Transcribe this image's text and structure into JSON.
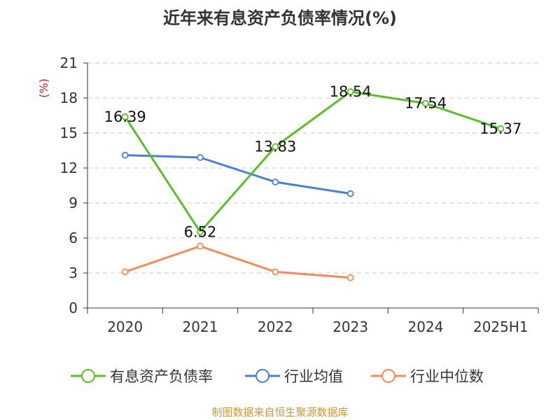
{
  "title": "近年来有息资产负债率情况(%)",
  "source_note": "制图数据来自恒生聚源数据库",
  "chart_data": {
    "type": "line",
    "title": "近年来有息资产负债率情况(%)",
    "ylabel": "(%)",
    "xlabel": "",
    "categories": [
      "2020",
      "2021",
      "2022",
      "2023",
      "2024",
      "2025H1"
    ],
    "ylim": [
      0,
      21
    ],
    "yticks": [
      0,
      3,
      6,
      9,
      12,
      15,
      18,
      21
    ],
    "grid": true,
    "legend_position": "bottom",
    "series": [
      {
        "name": "有息资产负债率",
        "color": "#5cbf27",
        "values": [
          16.39,
          6.52,
          13.83,
          18.54,
          17.54,
          15.37
        ],
        "show_labels": true
      },
      {
        "name": "行业均值",
        "color": "#4a7fd9",
        "values": [
          13.1,
          12.9,
          10.8,
          9.8,
          null,
          null
        ],
        "show_labels": false
      },
      {
        "name": "行业中位数",
        "color": "#f28c5a",
        "values": [
          3.1,
          5.3,
          3.1,
          2.6,
          null,
          null
        ],
        "show_labels": false
      }
    ]
  }
}
